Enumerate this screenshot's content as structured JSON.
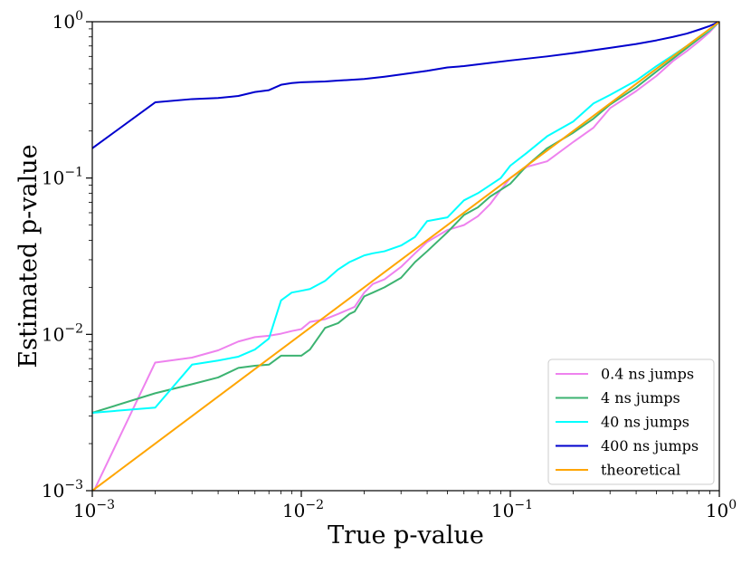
{
  "chart_data": {
    "type": "line",
    "title": "",
    "xlabel": "True p-value",
    "ylabel": "Estimated p-value",
    "xscale": "log",
    "yscale": "log",
    "xlim": [
      0.001,
      1
    ],
    "ylim": [
      0.001,
      1
    ],
    "x_ticks": [
      {
        "value": 0.001,
        "base": "10",
        "exp": "−3"
      },
      {
        "value": 0.01,
        "base": "10",
        "exp": "−2"
      },
      {
        "value": 0.1,
        "base": "10",
        "exp": "−1"
      },
      {
        "value": 1,
        "base": "10",
        "exp": "0"
      }
    ],
    "y_ticks": [
      {
        "value": 0.001,
        "base": "10",
        "exp": "−3"
      },
      {
        "value": 0.01,
        "base": "10",
        "exp": "−2"
      },
      {
        "value": 0.1,
        "base": "10",
        "exp": "−1"
      },
      {
        "value": 1,
        "base": "10",
        "exp": "0"
      }
    ],
    "legend_position": "bottom-right",
    "series": [
      {
        "name": "0.4 ns jumps",
        "color": "#ee82ee",
        "points": [
          [
            0.001,
            0.00095
          ],
          [
            0.002,
            0.0066
          ],
          [
            0.003,
            0.0071
          ],
          [
            0.004,
            0.0079
          ],
          [
            0.005,
            0.009
          ],
          [
            0.006,
            0.0096
          ],
          [
            0.007,
            0.0098
          ],
          [
            0.008,
            0.0101
          ],
          [
            0.009,
            0.0105
          ],
          [
            0.01,
            0.0108
          ],
          [
            0.011,
            0.012
          ],
          [
            0.013,
            0.0125
          ],
          [
            0.015,
            0.0135
          ],
          [
            0.018,
            0.015
          ],
          [
            0.02,
            0.0185
          ],
          [
            0.022,
            0.021
          ],
          [
            0.025,
            0.0225
          ],
          [
            0.03,
            0.027
          ],
          [
            0.035,
            0.033
          ],
          [
            0.04,
            0.039
          ],
          [
            0.05,
            0.0465
          ],
          [
            0.06,
            0.05
          ],
          [
            0.07,
            0.057
          ],
          [
            0.08,
            0.068
          ],
          [
            0.09,
            0.084
          ],
          [
            0.1,
            0.1
          ],
          [
            0.12,
            0.118
          ],
          [
            0.15,
            0.128
          ],
          [
            0.2,
            0.17
          ],
          [
            0.25,
            0.21
          ],
          [
            0.3,
            0.28
          ],
          [
            0.4,
            0.36
          ],
          [
            0.5,
            0.45
          ],
          [
            0.6,
            0.56
          ],
          [
            0.7,
            0.65
          ],
          [
            0.8,
            0.75
          ],
          [
            0.9,
            0.86
          ],
          [
            1.0,
            1.0
          ]
        ]
      },
      {
        "name": "4 ns jumps",
        "color": "#3cb371",
        "points": [
          [
            0.001,
            0.00315
          ],
          [
            0.002,
            0.0042
          ],
          [
            0.003,
            0.0048
          ],
          [
            0.004,
            0.0053
          ],
          [
            0.005,
            0.0061
          ],
          [
            0.006,
            0.0063
          ],
          [
            0.007,
            0.0064
          ],
          [
            0.008,
            0.0073
          ],
          [
            0.009,
            0.0073
          ],
          [
            0.01,
            0.0073
          ],
          [
            0.011,
            0.008
          ],
          [
            0.013,
            0.011
          ],
          [
            0.015,
            0.0118
          ],
          [
            0.017,
            0.0135
          ],
          [
            0.018,
            0.014
          ],
          [
            0.02,
            0.0175
          ],
          [
            0.022,
            0.0185
          ],
          [
            0.025,
            0.02
          ],
          [
            0.03,
            0.023
          ],
          [
            0.035,
            0.029
          ],
          [
            0.04,
            0.034
          ],
          [
            0.05,
            0.045
          ],
          [
            0.06,
            0.058
          ],
          [
            0.07,
            0.065
          ],
          [
            0.08,
            0.076
          ],
          [
            0.1,
            0.092
          ],
          [
            0.12,
            0.12
          ],
          [
            0.15,
            0.155
          ],
          [
            0.2,
            0.195
          ],
          [
            0.25,
            0.24
          ],
          [
            0.3,
            0.295
          ],
          [
            0.4,
            0.38
          ],
          [
            0.5,
            0.48
          ],
          [
            0.6,
            0.58
          ],
          [
            0.7,
            0.68
          ],
          [
            0.8,
            0.78
          ],
          [
            0.9,
            0.88
          ],
          [
            1.0,
            1.0
          ]
        ]
      },
      {
        "name": "40 ns jumps",
        "color": "#00ffff",
        "points": [
          [
            0.001,
            0.00315
          ],
          [
            0.002,
            0.0034
          ],
          [
            0.003,
            0.0064
          ],
          [
            0.004,
            0.0068
          ],
          [
            0.005,
            0.0072
          ],
          [
            0.006,
            0.008
          ],
          [
            0.007,
            0.0094
          ],
          [
            0.008,
            0.0165
          ],
          [
            0.009,
            0.0185
          ],
          [
            0.01,
            0.019
          ],
          [
            0.011,
            0.0195
          ],
          [
            0.013,
            0.022
          ],
          [
            0.015,
            0.026
          ],
          [
            0.017,
            0.029
          ],
          [
            0.018,
            0.03
          ],
          [
            0.02,
            0.032
          ],
          [
            0.022,
            0.033
          ],
          [
            0.025,
            0.034
          ],
          [
            0.03,
            0.037
          ],
          [
            0.035,
            0.042
          ],
          [
            0.04,
            0.053
          ],
          [
            0.05,
            0.056
          ],
          [
            0.06,
            0.072
          ],
          [
            0.07,
            0.08
          ],
          [
            0.08,
            0.09
          ],
          [
            0.09,
            0.1
          ],
          [
            0.1,
            0.12
          ],
          [
            0.12,
            0.145
          ],
          [
            0.15,
            0.185
          ],
          [
            0.2,
            0.23
          ],
          [
            0.25,
            0.3
          ],
          [
            0.3,
            0.34
          ],
          [
            0.4,
            0.42
          ],
          [
            0.5,
            0.52
          ],
          [
            0.6,
            0.61
          ],
          [
            0.7,
            0.7
          ],
          [
            0.8,
            0.8
          ],
          [
            0.9,
            0.89
          ],
          [
            1.0,
            1.0
          ]
        ]
      },
      {
        "name": "400 ns jumps",
        "color": "#0000cd",
        "points": [
          [
            0.001,
            0.155
          ],
          [
            0.002,
            0.305
          ],
          [
            0.003,
            0.32
          ],
          [
            0.004,
            0.325
          ],
          [
            0.005,
            0.335
          ],
          [
            0.006,
            0.355
          ],
          [
            0.007,
            0.365
          ],
          [
            0.008,
            0.395
          ],
          [
            0.009,
            0.405
          ],
          [
            0.01,
            0.41
          ],
          [
            0.013,
            0.415
          ],
          [
            0.015,
            0.42
          ],
          [
            0.02,
            0.43
          ],
          [
            0.025,
            0.445
          ],
          [
            0.03,
            0.46
          ],
          [
            0.04,
            0.485
          ],
          [
            0.05,
            0.51
          ],
          [
            0.06,
            0.52
          ],
          [
            0.08,
            0.545
          ],
          [
            0.1,
            0.565
          ],
          [
            0.15,
            0.6
          ],
          [
            0.2,
            0.63
          ],
          [
            0.3,
            0.68
          ],
          [
            0.4,
            0.72
          ],
          [
            0.5,
            0.76
          ],
          [
            0.6,
            0.8
          ],
          [
            0.7,
            0.84
          ],
          [
            0.8,
            0.89
          ],
          [
            0.9,
            0.94
          ],
          [
            1.0,
            1.0
          ]
        ]
      },
      {
        "name": "theoretical",
        "color": "#ffa500",
        "points": [
          [
            0.001,
            0.001
          ],
          [
            1.0,
            1.0
          ]
        ]
      }
    ]
  }
}
